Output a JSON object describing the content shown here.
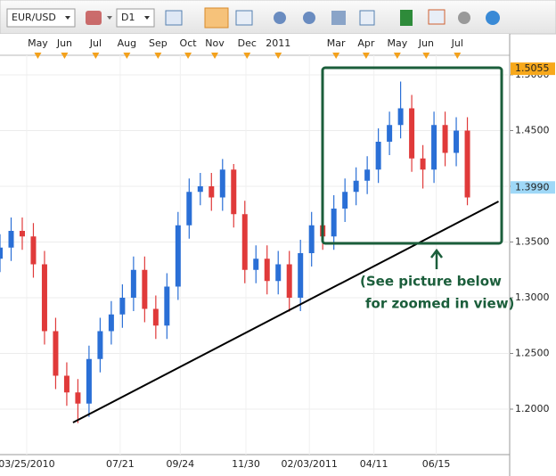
{
  "toolbar": {
    "symbol": "EUR/USD",
    "timeframe": "D1"
  },
  "chart_data": {
    "type": "candlestick",
    "annotation": [
      "(See picture below",
      "for zoomed in view)"
    ],
    "x": [
      -24,
      -14,
      -4,
      6,
      16,
      26,
      36,
      46,
      56,
      66,
      76,
      86,
      96,
      106,
      116,
      126,
      136,
      146,
      156,
      166,
      176,
      186,
      196,
      206,
      216,
      226,
      236,
      246,
      256,
      266,
      276,
      286,
      296,
      306,
      316,
      326,
      336,
      346,
      356,
      366,
      376,
      386,
      396
    ],
    "open": [
      1.335,
      1.345,
      1.36,
      1.355,
      1.33,
      1.27,
      1.23,
      1.215,
      1.205,
      1.245,
      1.27,
      1.285,
      1.3,
      1.325,
      1.29,
      1.275,
      1.31,
      1.365,
      1.395,
      1.4,
      1.39,
      1.415,
      1.375,
      1.325,
      1.335,
      1.315,
      1.33,
      1.3,
      1.34,
      1.365,
      1.355,
      1.38,
      1.395,
      1.405,
      1.415,
      1.44,
      1.455,
      1.47,
      1.425,
      1.415,
      1.455,
      1.43,
      1.45
    ],
    "high": [
      1.357,
      1.372,
      1.372,
      1.367,
      1.342,
      1.282,
      1.242,
      1.227,
      1.257,
      1.282,
      1.297,
      1.312,
      1.337,
      1.337,
      1.302,
      1.322,
      1.377,
      1.407,
      1.412,
      1.412,
      1.4245,
      1.42,
      1.387,
      1.347,
      1.347,
      1.342,
      1.342,
      1.352,
      1.377,
      1.377,
      1.392,
      1.407,
      1.417,
      1.427,
      1.452,
      1.467,
      1.494,
      1.482,
      1.437,
      1.467,
      1.467,
      1.462,
      1.462
    ],
    "low": [
      1.323,
      1.333,
      1.343,
      1.318,
      1.258,
      1.218,
      1.203,
      1.1875,
      1.193,
      1.233,
      1.258,
      1.273,
      1.288,
      1.278,
      1.263,
      1.263,
      1.298,
      1.353,
      1.383,
      1.378,
      1.378,
      1.363,
      1.313,
      1.313,
      1.303,
      1.303,
      1.2875,
      1.288,
      1.328,
      1.343,
      1.343,
      1.368,
      1.383,
      1.393,
      1.403,
      1.428,
      1.443,
      1.413,
      1.398,
      1.403,
      1.418,
      1.418,
      1.383
    ],
    "close": [
      1.345,
      1.36,
      1.355,
      1.33,
      1.27,
      1.23,
      1.215,
      1.205,
      1.245,
      1.27,
      1.285,
      1.3,
      1.325,
      1.29,
      1.275,
      1.31,
      1.365,
      1.395,
      1.4,
      1.39,
      1.415,
      1.375,
      1.325,
      1.335,
      1.315,
      1.33,
      1.3,
      1.34,
      1.365,
      1.355,
      1.38,
      1.395,
      1.405,
      1.415,
      1.44,
      1.455,
      1.47,
      1.425,
      1.415,
      1.455,
      1.43,
      1.45,
      1.39
    ],
    "up_color": "#2a6fd6",
    "down_color": "#e03a3a",
    "xlim": [
      -24,
      434
    ],
    "xticks": [
      {
        "value": 0,
        "label": "03/25/2010"
      },
      {
        "value": 84,
        "label": "07/21"
      },
      {
        "value": 138,
        "label": "09/24"
      },
      {
        "value": 197,
        "label": "11/30"
      },
      {
        "value": 254,
        "label": "02/03/2011"
      },
      {
        "value": 312,
        "label": "04/11"
      },
      {
        "value": 368,
        "label": "06/15"
      }
    ],
    "month_ticks": [
      {
        "value": 10,
        "label": "May"
      },
      {
        "value": 34,
        "label": "Jun"
      },
      {
        "value": 62,
        "label": "Jul"
      },
      {
        "value": 90,
        "label": "Aug"
      },
      {
        "value": 118,
        "label": "Sep"
      },
      {
        "value": 145,
        "label": "Oct"
      },
      {
        "value": 169,
        "label": "Nov"
      },
      {
        "value": 198,
        "label": "Dec"
      },
      {
        "value": 226,
        "label": "2011"
      },
      {
        "value": 278,
        "label": "Mar"
      },
      {
        "value": 305,
        "label": "Apr"
      },
      {
        "value": 333,
        "label": "May"
      },
      {
        "value": 359,
        "label": "Jun"
      },
      {
        "value": 387,
        "label": "Jul"
      }
    ],
    "ylim": [
      1.1592,
      1.5176
    ],
    "yticks": [
      {
        "value": 1.2,
        "label": "1.2000"
      },
      {
        "value": 1.25,
        "label": "1.2500"
      },
      {
        "value": 1.3,
        "label": "1.3000"
      },
      {
        "value": 1.35,
        "label": "1.3500"
      },
      {
        "value": 1.4,
        "label": "1.4000"
      },
      {
        "value": 1.45,
        "label": "1.4500"
      },
      {
        "value": 1.5,
        "label": "1.5000"
      }
    ],
    "price_markers": [
      {
        "value": 1.5055,
        "label": "1.5055",
        "color": "#f7a81b"
      },
      {
        "value": 1.399,
        "label": "1.3990",
        "color": "#9fd8f7"
      }
    ],
    "trendline": {
      "x": [
        41.6,
        424
      ],
      "y": [
        1.188,
        1.3864
      ],
      "color": "#000000"
    },
    "grid": true
  }
}
